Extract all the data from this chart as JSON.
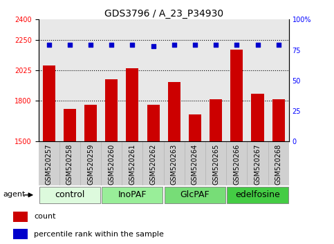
{
  "title": "GDS3796 / A_23_P34930",
  "samples": [
    "GSM520257",
    "GSM520258",
    "GSM520259",
    "GSM520260",
    "GSM520261",
    "GSM520262",
    "GSM520263",
    "GSM520264",
    "GSM520265",
    "GSM520266",
    "GSM520267",
    "GSM520268"
  ],
  "counts": [
    2060,
    1740,
    1770,
    1960,
    2040,
    1770,
    1940,
    1700,
    1810,
    2180,
    1850,
    1810
  ],
  "percentiles": [
    79,
    79,
    79,
    79,
    79,
    78,
    79,
    79,
    79,
    79,
    79,
    79
  ],
  "bar_color": "#cc0000",
  "dot_color": "#0000cc",
  "ylim_left": [
    1500,
    2400
  ],
  "ylim_right": [
    0,
    100
  ],
  "yticks_left": [
    1500,
    1800,
    2025,
    2250,
    2400
  ],
  "yticks_right": [
    0,
    25,
    50,
    75,
    100
  ],
  "ytick_labels_right": [
    "0",
    "25",
    "50",
    "75",
    "100%"
  ],
  "grid_lines": [
    1800,
    2025,
    2250
  ],
  "groups": [
    {
      "label": "control",
      "start": 0,
      "end": 3,
      "color": "#ddfadd"
    },
    {
      "label": "InoPAF",
      "start": 3,
      "end": 6,
      "color": "#99ee99"
    },
    {
      "label": "GlcPAF",
      "start": 6,
      "end": 9,
      "color": "#77dd77"
    },
    {
      "label": "edelfosine",
      "start": 9,
      "end": 12,
      "color": "#44cc44"
    }
  ],
  "agent_label": "agent",
  "legend_count_label": "count",
  "legend_pct_label": "percentile rank within the sample",
  "bar_color_legend": "#cc0000",
  "dot_color_legend": "#0000cc",
  "bar_width": 0.6,
  "plot_bg": "#e8e8e8",
  "title_fontsize": 10,
  "axis_tick_fontsize": 7,
  "group_label_fontsize": 9,
  "legend_fontsize": 8
}
